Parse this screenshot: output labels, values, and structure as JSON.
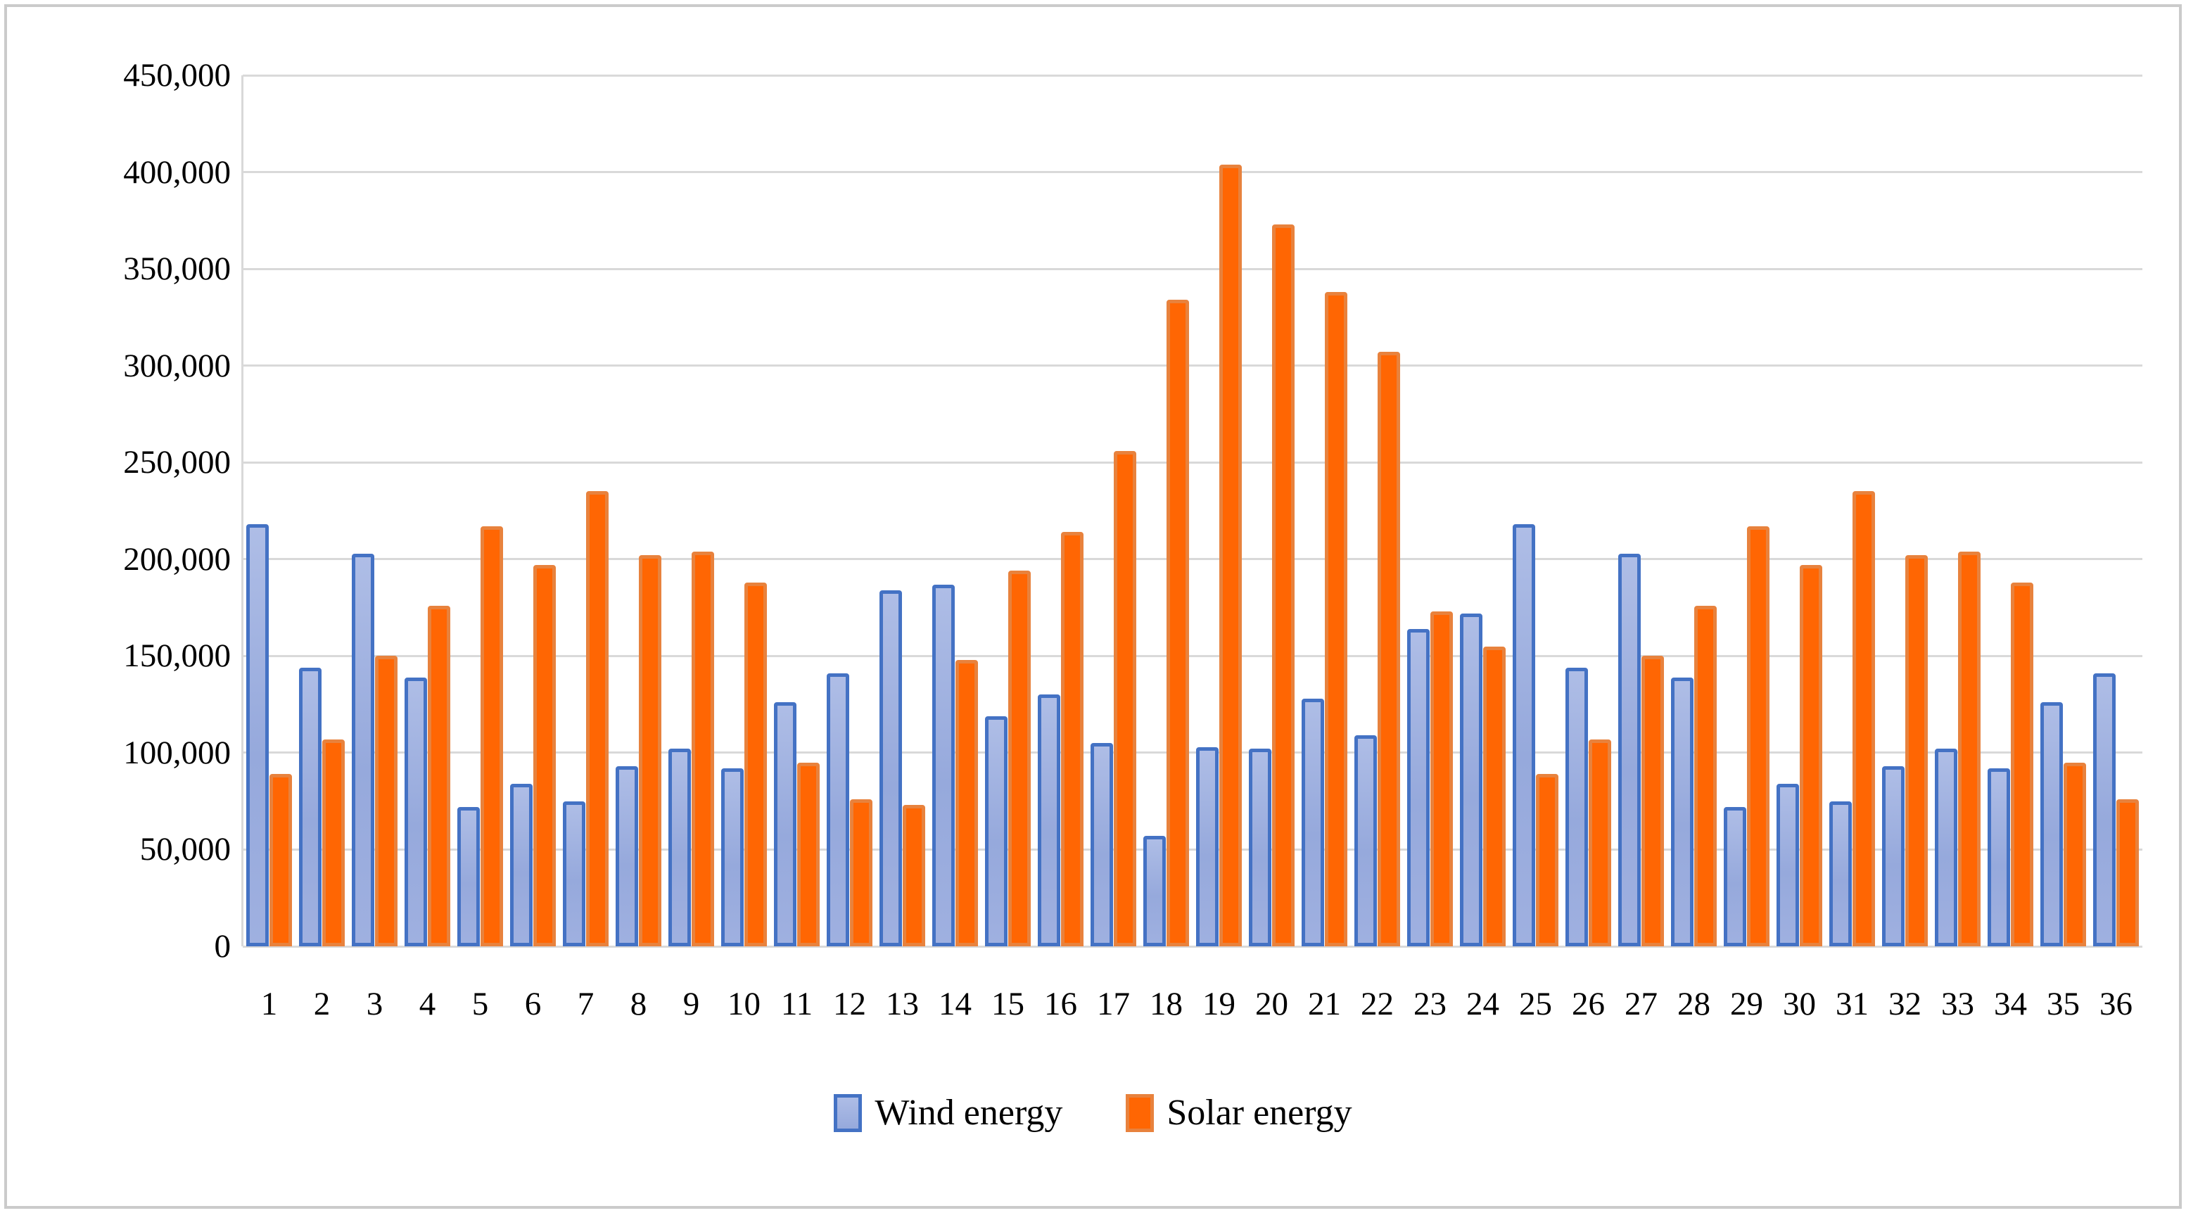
{
  "chart_data": {
    "type": "bar",
    "title": "",
    "xlabel": "",
    "ylabel": "",
    "ylim": [
      0,
      450000
    ],
    "ytick_step": 50000,
    "grid": true,
    "legend_position": "bottom-center",
    "categories": [
      "1",
      "2",
      "3",
      "4",
      "5",
      "6",
      "7",
      "8",
      "9",
      "10",
      "11",
      "12",
      "13",
      "14",
      "15",
      "16",
      "17",
      "18",
      "19",
      "20",
      "21",
      "22",
      "23",
      "24",
      "25",
      "26",
      "27",
      "28",
      "29",
      "30",
      "31",
      "32",
      "33",
      "34",
      "35",
      "36"
    ],
    "ytick_labels": [
      "0",
      "50,000",
      "100,000",
      "150,000",
      "200,000",
      "250,000",
      "300,000",
      "350,000",
      "400,000",
      "450,000"
    ],
    "series": [
      {
        "name": "Wind energy",
        "values": [
          218000,
          144000,
          203000,
          139000,
          72000,
          84000,
          75000,
          93000,
          102000,
          92000,
          126000,
          141000,
          184000,
          187000,
          119000,
          130000,
          105000,
          57000,
          103000,
          102000,
          128000,
          109000,
          164000,
          172000,
          218000,
          144000,
          203000,
          139000,
          72000,
          84000,
          75000,
          93000,
          102000,
          92000,
          126000,
          141000
        ]
      },
      {
        "name": "Solar energy",
        "values": [
          89000,
          107000,
          150000,
          176000,
          217000,
          197000,
          235000,
          202000,
          204000,
          188000,
          95000,
          76000,
          73000,
          148000,
          194000,
          214000,
          256000,
          334000,
          404000,
          373000,
          338000,
          307000,
          173000,
          155000,
          89000,
          107000,
          150000,
          176000,
          217000,
          197000,
          235000,
          202000,
          204000,
          188000,
          95000,
          76000
        ]
      }
    ]
  },
  "legend": {
    "wind_label": "Wind energy",
    "solar_label": "Solar energy"
  },
  "colors": {
    "wind_border": "#4472c4",
    "wind_fill": "#96a9dc",
    "solar_border": "#e8823d",
    "solar_fill": "#ff6603",
    "gridline": "#d9d9d9",
    "frame_border": "#cbcbcb",
    "text": "#000000",
    "background": "#ffffff"
  }
}
